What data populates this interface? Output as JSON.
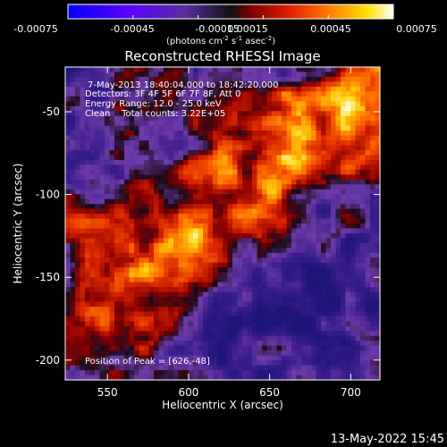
{
  "colorbar": {
    "ticks": [
      "-0.00075",
      "-0.00045",
      "-0.00015",
      "0.00015",
      "0.00045",
      "0.00075"
    ],
    "unit_prefix": "(photons cm",
    "unit_sup1": "-2",
    "unit_mid": " s",
    "unit_sup2": "-1",
    "unit_mid2": " asec",
    "unit_sup3": "-2",
    "unit_suffix": ")"
  },
  "chart_data": {
    "type": "heatmap",
    "title": "Reconstructed RHESSI Image",
    "xlabel": "Heliocentric X (arcsec)",
    "ylabel": "Heliocentric Y (arcsec)",
    "xlim": [
      524,
      718
    ],
    "ylim": [
      -212,
      -23
    ],
    "x_ticks": [
      550,
      600,
      650,
      700
    ],
    "y_ticks": [
      -50,
      -100,
      -150,
      -200
    ],
    "colorbar_range": [
      -0.00075,
      0.00075
    ],
    "colormap": "rainbow-like blue-purple-red-yellow-white",
    "grid": false,
    "annotations": {
      "time_range": "7-May-2013 18:40:04.000 to 18:42:20.000",
      "detectors": "Detectors: 3F 4F 5F 6F 7F 8F, Att 0",
      "energy": "Energy Range: 12.0 - 25.0 keV",
      "clean": "Clean    Total counts: 3.22E+05",
      "peak": "Position of Peak = [626,-48]"
    }
  },
  "footer": {
    "timestamp": "13-May-2022 15:45"
  },
  "colors": {
    "background": "#000000",
    "text": "#ffffff"
  }
}
